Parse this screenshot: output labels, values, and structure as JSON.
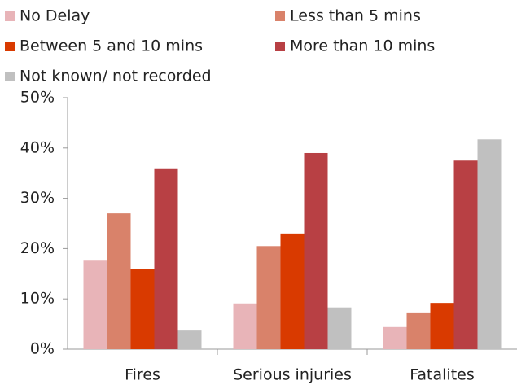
{
  "chart_data": {
    "type": "bar",
    "categories": [
      "Fires",
      "Serious injuries",
      "Fatalites"
    ],
    "series": [
      {
        "name": "No Delay",
        "color": "#e8b4b8",
        "values": [
          17.6,
          9.1,
          4.4
        ]
      },
      {
        "name": "Less than 5 mins",
        "color": "#d9826a",
        "values": [
          27,
          20.5,
          7.3
        ]
      },
      {
        "name": "Between 5 and 10 mins",
        "color": "#d93a00",
        "values": [
          15.9,
          23,
          9.2
        ]
      },
      {
        "name": "More than 10 mins",
        "color": "#b84044",
        "values": [
          35.8,
          39,
          37.5
        ]
      },
      {
        "name": "Not known/ not recorded",
        "color": "#c0c0c0",
        "values": [
          3.7,
          8.3,
          41.7
        ]
      }
    ],
    "ylim": [
      0,
      50
    ],
    "yticks": [
      {
        "value": 0,
        "label": "0%"
      },
      {
        "value": 10,
        "label": "10%"
      },
      {
        "value": 20,
        "label": "20%"
      },
      {
        "value": 30,
        "label": "30%"
      },
      {
        "value": 40,
        "label": "40%"
      },
      {
        "value": 50,
        "label": "50%"
      }
    ],
    "grid": false
  }
}
